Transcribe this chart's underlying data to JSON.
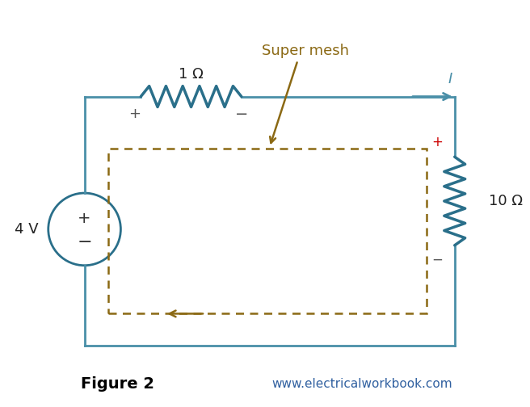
{
  "bg_color": "#ffffff",
  "circuit_color": "#4a8fa8",
  "resistor_color": "#2a6f8a",
  "supermesh_color": "#8B6914",
  "voltage_source_color": "#2a6f8a",
  "title_text": "Figure 2",
  "website_text": "www.electricalworkbook.com",
  "supermesh_label": "Super mesh",
  "resistor1_label": "1 Ω",
  "resistor2_label": "10 Ω",
  "voltage_label": "4 V",
  "current_label": "I",
  "plus_minus_color": "#555555",
  "red_plus_color": "#cc0000",
  "circuit_lw": 2.0,
  "dashed_lw": 1.8
}
